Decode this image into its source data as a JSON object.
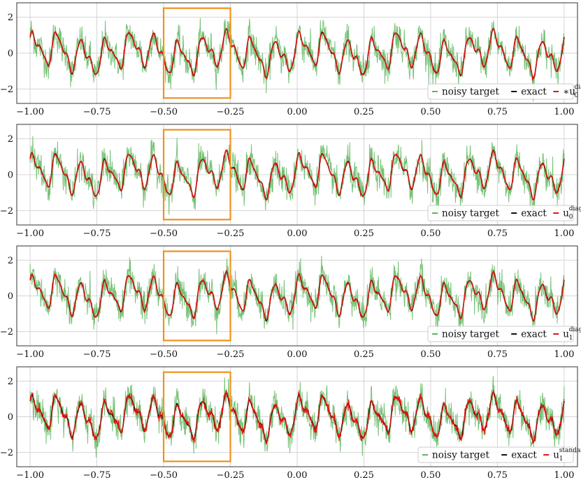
{
  "figure": {
    "subplot_count": 4
  },
  "colors": {
    "noisy": "#5fb65f",
    "exact": "#111111",
    "prediction": "#e8120c",
    "highlight_box": "#f0921e",
    "grid": "#d4d4d4",
    "axes": "#333333"
  },
  "chart_data": [
    {
      "type": "line",
      "xlim": [
        -1.05,
        1.05
      ],
      "ylim": [
        -2.8,
        2.8
      ],
      "x_ticks": [
        -1.0,
        -0.75,
        -0.5,
        -0.25,
        0.0,
        0.25,
        0.5,
        0.75,
        1.0
      ],
      "x_tick_labels": [
        "−1.00",
        "−0.75",
        "−0.50",
        "−0.25",
        "0.00",
        "0.25",
        "0.50",
        "0.75",
        "1.00"
      ],
      "y_ticks": [
        -2,
        0,
        2
      ],
      "y_tick_labels": [
        "−2",
        "0",
        "2"
      ],
      "grid": true,
      "highlight_box": {
        "x": [
          -0.5,
          -0.25
        ],
        "y": [
          -2.5,
          2.5
        ]
      },
      "legend": {
        "placement": "lower-right",
        "entries": [
          {
            "label": "noisy target",
            "color": "#5fb65f"
          },
          {
            "label": "exact",
            "color": "#111111"
          },
          {
            "label": "∗u",
            "sub": "0",
            "sup": "diag",
            "color": "#e8120c"
          }
        ]
      },
      "series": [
        {
          "name": "noisy target",
          "noise_amplitude": 0.45
        },
        {
          "name": "exact"
        },
        {
          "name": "∗u0 diag",
          "error_amplitude": 0.03
        }
      ]
    },
    {
      "type": "line",
      "xlim": [
        -1.05,
        1.05
      ],
      "ylim": [
        -2.8,
        2.8
      ],
      "x_ticks": [
        -1.0,
        -0.75,
        -0.5,
        -0.25,
        0.0,
        0.25,
        0.5,
        0.75,
        1.0
      ],
      "x_tick_labels": [
        "−1.00",
        "−0.75",
        "−0.50",
        "−0.25",
        "0.00",
        "0.25",
        "0.50",
        "0.75",
        "1.00"
      ],
      "y_ticks": [
        -2,
        0,
        2
      ],
      "y_tick_labels": [
        "−2",
        "0",
        "2"
      ],
      "grid": true,
      "highlight_box": {
        "x": [
          -0.5,
          -0.25
        ],
        "y": [
          -2.5,
          2.5
        ]
      },
      "legend": {
        "placement": "lower-right",
        "entries": [
          {
            "label": "noisy target",
            "color": "#5fb65f"
          },
          {
            "label": "exact",
            "color": "#111111"
          },
          {
            "label": "u",
            "sub": "0",
            "sup": "diag",
            "color": "#e8120c"
          }
        ]
      },
      "series": [
        {
          "name": "noisy target",
          "noise_amplitude": 0.45
        },
        {
          "name": "exact"
        },
        {
          "name": "u0 diag",
          "error_amplitude": 0.03
        }
      ]
    },
    {
      "type": "line",
      "xlim": [
        -1.05,
        1.05
      ],
      "ylim": [
        -2.8,
        2.8
      ],
      "x_ticks": [
        -1.0,
        -0.75,
        -0.5,
        -0.25,
        0.0,
        0.25,
        0.5,
        0.75,
        1.0
      ],
      "x_tick_labels": [
        "−1.00",
        "−0.75",
        "−0.50",
        "−0.25",
        "0.00",
        "0.25",
        "0.50",
        "0.75",
        "1.00"
      ],
      "y_ticks": [
        -2,
        0,
        2
      ],
      "y_tick_labels": [
        "−2",
        "0",
        "2"
      ],
      "grid": true,
      "highlight_box": {
        "x": [
          -0.5,
          -0.25
        ],
        "y": [
          -2.5,
          2.5
        ]
      },
      "legend": {
        "placement": "lower-right",
        "entries": [
          {
            "label": "noisy target",
            "color": "#5fb65f"
          },
          {
            "label": "exact",
            "color": "#111111"
          },
          {
            "label": "u",
            "sub": "1",
            "sup": "diag",
            "color": "#e8120c"
          }
        ]
      },
      "series": [
        {
          "name": "noisy target",
          "noise_amplitude": 0.45
        },
        {
          "name": "exact"
        },
        {
          "name": "u1 diag",
          "error_amplitude": 0.03
        }
      ]
    },
    {
      "type": "line",
      "xlim": [
        -1.05,
        1.05
      ],
      "ylim": [
        -2.8,
        2.8
      ],
      "x_ticks": [
        -1.0,
        -0.75,
        -0.5,
        -0.25,
        0.0,
        0.25,
        0.5,
        0.75,
        1.0
      ],
      "x_tick_labels": [
        "−1.00",
        "−0.75",
        "−0.50",
        "−0.25",
        "0.00",
        "0.25",
        "0.50",
        "0.75",
        "1.00"
      ],
      "y_ticks": [
        -2,
        0,
        2
      ],
      "y_tick_labels": [
        "−2",
        "0",
        "2"
      ],
      "grid": true,
      "highlight_box": {
        "x": [
          -0.5,
          -0.25
        ],
        "y": [
          -2.5,
          2.5
        ]
      },
      "legend": {
        "placement": "lower-right",
        "entries": [
          {
            "label": "noisy target",
            "color": "#5fb65f"
          },
          {
            "label": "exact",
            "color": "#111111"
          },
          {
            "label": "u",
            "sub": "1",
            "sup": "standard",
            "color": "#e8120c"
          }
        ]
      },
      "series": [
        {
          "name": "noisy target",
          "noise_amplitude": 0.45
        },
        {
          "name": "exact"
        },
        {
          "name": "u1 standard",
          "error_amplitude": 0.12
        }
      ]
    }
  ]
}
